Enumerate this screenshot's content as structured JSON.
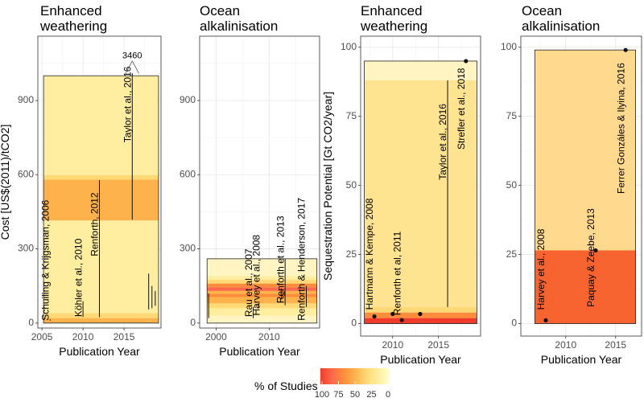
{
  "legend": {
    "title": "% of Studies",
    "ticks": [
      "100",
      "75",
      "50",
      "25",
      "0"
    ],
    "colors": [
      "#ef3b2c",
      "#fb6a4a",
      "#fd8d3c",
      "#feb24c",
      "#fed976",
      "#ffeda0",
      "#ffffcc"
    ]
  },
  "chart_data": [
    {
      "type": "range-bar",
      "title": "Enhanced\nweathering",
      "xlabel": "Publication Year",
      "ylabel": "Cost [US$(2011)/tCO2]",
      "xlim": [
        2004.5,
        2019.5
      ],
      "ylim": [
        -20,
        1160
      ],
      "xticks": [
        2005,
        2010,
        2015
      ],
      "yticks": [
        0,
        300,
        600,
        900
      ],
      "bands": [
        {
          "y0": 0,
          "y1": 1000,
          "color": "#ffeda0"
        },
        {
          "y0": 415,
          "y1": 580,
          "color": "#feb24c"
        },
        {
          "y0": 580,
          "y1": 598,
          "color": "#fed976"
        },
        {
          "y0": 20,
          "y1": 40,
          "color": "#fed976"
        },
        {
          "y0": 0,
          "y1": 20,
          "color": "#feb24c"
        }
      ],
      "outline": {
        "x0": 2005.2,
        "x1": 2019.2,
        "y0": 0,
        "y1": 1000
      },
      "studies": [
        {
          "label": "Schuiling & Krijgsman, 2006",
          "x": 2006,
          "ymin": 10,
          "ymax": 15
        },
        {
          "label": "Köhler et al., 2010",
          "x": 2010,
          "ymin": 25,
          "ymax": 88
        },
        {
          "label": "Renforth, 2012",
          "x": 2012,
          "ymin": 24,
          "ymax": 578
        },
        {
          "label": "Taylor et al., 2016",
          "x": 2016,
          "ymin": 418,
          "ymax": 1000
        },
        {
          "x": 2018,
          "ymin": 55,
          "ymax": 200
        },
        {
          "x": 2018.4,
          "ymin": 60,
          "ymax": 150
        },
        {
          "x": 2018.8,
          "ymin": 70,
          "ymax": 130
        }
      ],
      "annotation": {
        "text": "3460"
      }
    },
    {
      "type": "range-bar",
      "title": "Ocean\nalkalinisation",
      "xlabel": "Publication Year",
      "xlim": [
        1996.9,
        2019.5
      ],
      "ylim": [
        -20,
        1160
      ],
      "xticks": [
        2000,
        2010
      ],
      "yticks": [
        0,
        300,
        600,
        900
      ],
      "bands": [
        {
          "y0": 0,
          "y1": 260,
          "color": "#fff4c2"
        },
        {
          "y0": 30,
          "y1": 60,
          "color": "#ffeda0"
        },
        {
          "y0": 60,
          "y1": 80,
          "color": "#fed976"
        },
        {
          "y0": 80,
          "y1": 105,
          "color": "#feb24c"
        },
        {
          "y0": 105,
          "y1": 118,
          "color": "#fd8d3c"
        },
        {
          "y0": 118,
          "y1": 130,
          "color": "#feb24c"
        },
        {
          "y0": 130,
          "y1": 145,
          "color": "#fb6a4a"
        },
        {
          "y0": 145,
          "y1": 160,
          "color": "#fd8d3c"
        },
        {
          "y0": 160,
          "y1": 175,
          "color": "#fed976"
        },
        {
          "y0": 175,
          "y1": 190,
          "color": "#ffeda0"
        }
      ],
      "outline": {
        "x0": 1998.3,
        "x1": 2019,
        "y0": 0,
        "y1": 260
      },
      "studies": [
        {
          "label": "Rau et al., 2007",
          "x": 2007,
          "ymin": 20,
          "ymax": 65
        },
        {
          "label": "Harvey et al., 2008",
          "x": 2008,
          "ymin": 60,
          "ymax": 80
        },
        {
          "label": "Renforth et al., 2013",
          "x": 2013,
          "ymin": 72,
          "ymax": 260
        },
        {
          "label": "Renforth & Henderson, 2017",
          "x": 2017,
          "ymin": 65,
          "ymax": 150
        },
        {
          "x": 1998.6,
          "ymin": 20,
          "ymax": 120
        },
        {
          "x": 2012.3,
          "ymin": 100,
          "ymax": 140
        },
        {
          "x": 2012.6,
          "ymin": 105,
          "ymax": 135
        },
        {
          "x": 2012.9,
          "ymin": 110,
          "ymax": 130
        }
      ]
    },
    {
      "type": "range-bar",
      "title": "Enhanced\nweathering",
      "xlabel": "Publication Year",
      "ylabel": "Sequestration Potential [Gt CO2/year]",
      "xlim": [
        2006.5,
        2019.6
      ],
      "ylim": [
        -4.5,
        104
      ],
      "xticks": [
        2010,
        2015
      ],
      "yticks": [
        0,
        25,
        50,
        75,
        100
      ],
      "bands": [
        {
          "y0": 0,
          "y1": 95,
          "color": "#fff4c2"
        },
        {
          "y0": 6,
          "y1": 88,
          "color": "#fee391"
        },
        {
          "y0": 4,
          "y1": 6,
          "color": "#fed976"
        },
        {
          "y0": 2,
          "y1": 4,
          "color": "#fd8d3c"
        },
        {
          "y0": 0,
          "y1": 2,
          "color": "#ef3b2c"
        }
      ],
      "outline": {
        "x0": 2006.9,
        "x1": 2019.2,
        "y0": 0,
        "y1": 95
      },
      "studies": [
        {
          "label": "Hartmann & Kempe, 2008",
          "x": 2008,
          "ymin": 2.6,
          "ymax": 2.6
        },
        {
          "x": 2010,
          "ymin": 3.5,
          "ymax": 3.5
        },
        {
          "label": "Renforth et al, 2011",
          "x": 2011,
          "ymin": 1.3,
          "ymax": 1.3
        },
        {
          "x": 2013,
          "ymin": 3.5,
          "ymax": 3.5
        },
        {
          "label": "Taylor et al., 2016",
          "x": 2016,
          "ymin": 6,
          "ymax": 88
        },
        {
          "label": "Strefler et al., 2018",
          "x": 2018,
          "ymin": 95,
          "ymax": 95
        }
      ]
    },
    {
      "type": "range-bar",
      "title": "Ocean\nalkalinisation",
      "xlabel": "Publication Year",
      "xlim": [
        2005.5,
        2017.6
      ],
      "ylim": [
        -4.5,
        104
      ],
      "xticks": [
        2010,
        2015
      ],
      "yticks": [
        0,
        25,
        50,
        75,
        100
      ],
      "bands": [
        {
          "y0": 0,
          "y1": 99,
          "color": "#fed98e"
        },
        {
          "y0": 0,
          "y1": 26.5,
          "color": "#f7642f"
        }
      ],
      "outline": {
        "x0": 2006.9,
        "x1": 2017,
        "y0": 0,
        "y1": 99
      },
      "studies": [
        {
          "label": "Harvey et al., 2008",
          "x": 2008,
          "ymin": 1.2,
          "ymax": 1.2
        },
        {
          "label": "Paquay & Zeebe, 2013",
          "x": 2013,
          "ymin": 26.5,
          "ymax": 26.5
        },
        {
          "label": "Ferrer Gonzáles & Ilyina, 2016",
          "x": 2016,
          "ymin": 99,
          "ymax": 99
        }
      ]
    }
  ]
}
